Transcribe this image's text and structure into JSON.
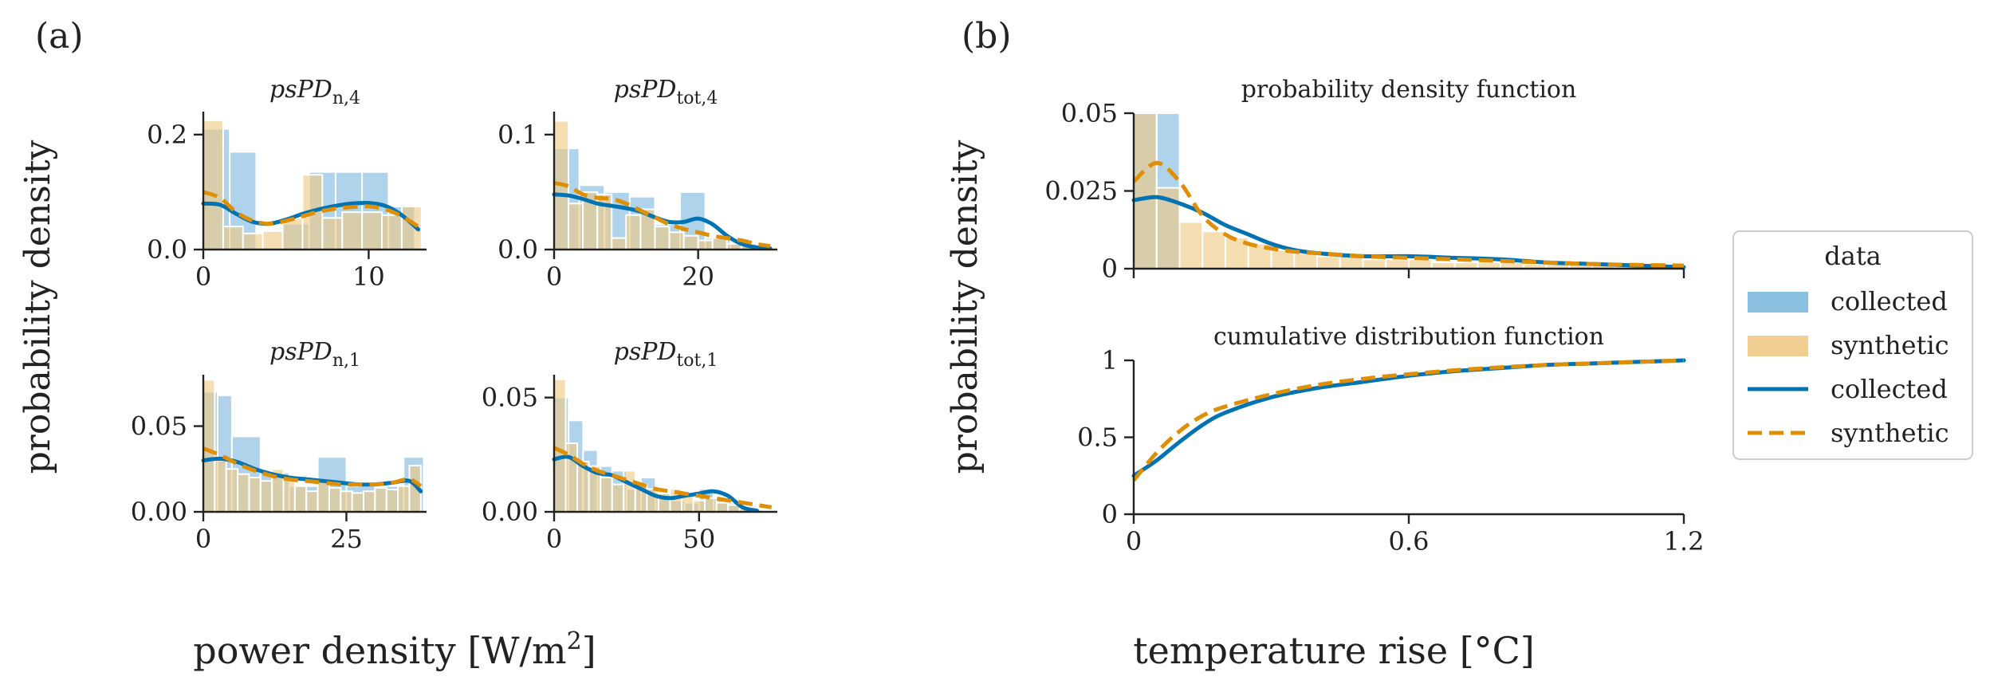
{
  "panel_labels": {
    "a": "(a)",
    "b": "(b)"
  },
  "axis_labels": {
    "a_y": "probability density",
    "a_x_prefix": "power density [W/m",
    "a_x_sup": "2",
    "a_x_suffix": "]",
    "b_y": "probability density",
    "b_x": "temperature rise [°C]"
  },
  "legend": {
    "title": "data",
    "entries": [
      {
        "label": "collected",
        "kind": "hist",
        "color": "#0173b2"
      },
      {
        "label": "synthetic",
        "kind": "hist",
        "color": "#de8f05"
      },
      {
        "label": "collected",
        "kind": "line",
        "color": "#0173b2"
      },
      {
        "label": "synthetic",
        "kind": "dash",
        "color": "#de8f05"
      }
    ]
  },
  "colors": {
    "collected": "#0173b2",
    "synthetic": "#de8f05",
    "collected_fill": "#7db8dd",
    "synthetic_fill": "#f0c985"
  },
  "chart_data": [
    {
      "type": "bar",
      "title_base": "psPD",
      "title_sub": "n,4",
      "xlim": [
        0,
        13.5
      ],
      "ylim": [
        0,
        0.24
      ],
      "xticks": [
        0,
        10
      ],
      "xtick_labels": [
        "0",
        "10"
      ],
      "yticks": [
        0,
        0.2
      ],
      "ytick_labels": [
        "0.0",
        "0.2"
      ],
      "hist_collected": {
        "edges": [
          0,
          1.6,
          3.2,
          4.8,
          6.4,
          8.0,
          9.6,
          11.2,
          12.8
        ],
        "density": [
          0.21,
          0.17,
          0.0,
          0.045,
          0.135,
          0.135,
          0.135,
          0.075
        ]
      },
      "hist_synthetic": {
        "edges": [
          0,
          1.2,
          2.4,
          3.6,
          4.8,
          6.0,
          7.2,
          8.4,
          9.6,
          10.8,
          12.0,
          13.2
        ],
        "density": [
          0.225,
          0.04,
          0.028,
          0.032,
          0.055,
          0.13,
          0.055,
          0.065,
          0.065,
          0.06,
          0.075
        ]
      },
      "kde_collected": {
        "x": [
          0,
          1,
          2,
          3,
          4,
          5,
          6,
          7,
          8,
          9,
          10,
          11,
          12,
          13
        ],
        "y": [
          0.08,
          0.078,
          0.062,
          0.048,
          0.045,
          0.052,
          0.062,
          0.07,
          0.076,
          0.08,
          0.081,
          0.076,
          0.06,
          0.035
        ]
      },
      "kde_synthetic": {
        "x": [
          0,
          1,
          2,
          3,
          4,
          5,
          6,
          7,
          8,
          9,
          10,
          11,
          12,
          13
        ],
        "y": [
          0.1,
          0.09,
          0.065,
          0.05,
          0.045,
          0.05,
          0.058,
          0.066,
          0.071,
          0.074,
          0.075,
          0.07,
          0.058,
          0.04
        ]
      }
    },
    {
      "type": "bar",
      "title_base": "psPD",
      "title_sub": "tot,4",
      "xlim": [
        0,
        31
      ],
      "ylim": [
        0,
        0.12
      ],
      "xticks": [
        0,
        20
      ],
      "xtick_labels": [
        "0",
        "20"
      ],
      "yticks": [
        0,
        0.1
      ],
      "ytick_labels": [
        "0.0",
        "0.1"
      ],
      "hist_collected": {
        "edges": [
          0,
          3.5,
          7,
          10.5,
          14,
          17.5,
          21,
          24.5,
          28
        ],
        "density": [
          0.088,
          0.056,
          0.05,
          0.046,
          0.022,
          0.05,
          0.01,
          0.005
        ]
      },
      "hist_synthetic": {
        "edges": [
          0,
          2,
          4,
          6,
          8,
          10,
          12,
          14,
          16,
          18,
          20,
          22,
          24,
          26,
          28
        ],
        "density": [
          0.112,
          0.04,
          0.05,
          0.048,
          0.01,
          0.03,
          0.035,
          0.02,
          0.015,
          0.012,
          0.008,
          0.01,
          0.005,
          0.003
        ]
      },
      "kde_collected": {
        "x": [
          0,
          2,
          4,
          6,
          8,
          10,
          12,
          14,
          16,
          18,
          20,
          22,
          24,
          26,
          28,
          30
        ],
        "y": [
          0.048,
          0.047,
          0.044,
          0.04,
          0.038,
          0.036,
          0.033,
          0.028,
          0.024,
          0.024,
          0.027,
          0.022,
          0.012,
          0.005,
          0.002,
          0.001
        ]
      },
      "kde_synthetic": {
        "x": [
          0,
          2,
          4,
          6,
          8,
          10,
          12,
          14,
          16,
          18,
          20,
          22,
          24,
          26,
          28,
          30
        ],
        "y": [
          0.058,
          0.055,
          0.048,
          0.045,
          0.044,
          0.04,
          0.034,
          0.028,
          0.022,
          0.018,
          0.015,
          0.012,
          0.01,
          0.008,
          0.005,
          0.003
        ]
      }
    },
    {
      "type": "bar",
      "title_base": "psPD",
      "title_sub": "n,1",
      "xlim": [
        0,
        39
      ],
      "ylim": [
        0,
        0.08
      ],
      "xticks": [
        0,
        25
      ],
      "xtick_labels": [
        "0",
        "25"
      ],
      "yticks": [
        0,
        0.05
      ],
      "ytick_labels": [
        "0.00",
        "0.05"
      ],
      "hist_collected": {
        "edges": [
          0,
          2.5,
          5,
          10,
          15,
          20,
          25,
          30,
          35,
          38.5
        ],
        "density": [
          0.07,
          0.068,
          0.044,
          0.023,
          0.015,
          0.032,
          0.015,
          0.015,
          0.032
        ]
      },
      "hist_synthetic": {
        "edges": [
          0,
          2,
          4,
          6,
          8,
          10,
          12,
          14,
          16,
          18,
          20,
          22,
          24,
          26,
          28,
          30,
          32,
          34,
          36,
          38
        ],
        "density": [
          0.077,
          0.03,
          0.025,
          0.022,
          0.02,
          0.018,
          0.025,
          0.02,
          0.015,
          0.012,
          0.018,
          0.014,
          0.012,
          0.011,
          0.012,
          0.014,
          0.013,
          0.015,
          0.027
        ]
      },
      "kde_collected": {
        "x": [
          0,
          3,
          6,
          9,
          12,
          15,
          18,
          21,
          24,
          27,
          30,
          33,
          36,
          38
        ],
        "y": [
          0.03,
          0.031,
          0.029,
          0.025,
          0.022,
          0.02,
          0.019,
          0.018,
          0.017,
          0.016,
          0.016,
          0.017,
          0.018,
          0.012
        ]
      },
      "kde_synthetic": {
        "x": [
          0,
          3,
          6,
          9,
          12,
          15,
          18,
          21,
          24,
          27,
          30,
          33,
          36,
          38
        ],
        "y": [
          0.037,
          0.033,
          0.028,
          0.024,
          0.021,
          0.019,
          0.018,
          0.017,
          0.016,
          0.016,
          0.016,
          0.017,
          0.019,
          0.015
        ]
      }
    },
    {
      "type": "bar",
      "title_base": "psPD",
      "title_sub": "tot,1",
      "xlim": [
        0,
        77
      ],
      "ylim": [
        0,
        0.06
      ],
      "xticks": [
        0,
        50
      ],
      "xtick_labels": [
        "0",
        "50"
      ],
      "yticks": [
        0,
        0.05
      ],
      "ytick_labels": [
        "0.00",
        "0.05"
      ],
      "hist_collected": {
        "edges": [
          0,
          5,
          10,
          15,
          20,
          25,
          30,
          35,
          40,
          45,
          50,
          55,
          60,
          65,
          70
        ],
        "density": [
          0.05,
          0.04,
          0.027,
          0.02,
          0.018,
          0.01,
          0.015,
          0.008,
          0.005,
          0.004,
          0.01,
          0.006,
          0.004,
          0.002
        ]
      },
      "hist_synthetic": {
        "edges": [
          0,
          4,
          8,
          12,
          16,
          20,
          24,
          28,
          32,
          36,
          40,
          44,
          48,
          52,
          56,
          60,
          64,
          68,
          72
        ],
        "density": [
          0.058,
          0.03,
          0.022,
          0.02,
          0.015,
          0.012,
          0.018,
          0.012,
          0.01,
          0.008,
          0.01,
          0.007,
          0.005,
          0.006,
          0.004,
          0.003,
          0.002,
          0.001
        ]
      },
      "kde_collected": {
        "x": [
          0,
          5,
          10,
          15,
          20,
          25,
          30,
          35,
          40,
          45,
          50,
          55,
          60,
          65,
          70
        ],
        "y": [
          0.023,
          0.024,
          0.02,
          0.017,
          0.016,
          0.013,
          0.01,
          0.007,
          0.006,
          0.007,
          0.008,
          0.009,
          0.007,
          0.002,
          0.0005
        ]
      },
      "kde_synthetic": {
        "x": [
          0,
          5,
          10,
          15,
          20,
          25,
          30,
          35,
          40,
          45,
          50,
          55,
          60,
          65,
          70,
          75
        ],
        "y": [
          0.028,
          0.025,
          0.021,
          0.018,
          0.016,
          0.014,
          0.012,
          0.01,
          0.009,
          0.008,
          0.007,
          0.006,
          0.005,
          0.004,
          0.003,
          0.002
        ]
      }
    },
    {
      "type": "bar",
      "title": "probability density function",
      "xlim": [
        0,
        1.2
      ],
      "ylim": [
        0,
        0.05
      ],
      "xticks": [
        0,
        0.6,
        1.2
      ],
      "xtick_labels": [
        "",
        "",
        ""
      ],
      "yticks": [
        0,
        0.025,
        0.05
      ],
      "ytick_labels": [
        "0",
        "0.025",
        "0.05"
      ],
      "hist_collected": {
        "edges": [
          0,
          0.05,
          0.1
        ],
        "density": [
          0.05,
          0.05
        ]
      },
      "hist_synthetic": {
        "edges": [
          0,
          0.05,
          0.1,
          0.15,
          0.2,
          0.25,
          0.3,
          0.35,
          0.4,
          0.45,
          0.5,
          0.55,
          0.6,
          0.65,
          0.7,
          0.75,
          0.8,
          0.85,
          0.9,
          0.95,
          1.0,
          1.05,
          1.1,
          1.15,
          1.2
        ],
        "density": [
          0.05,
          0.026,
          0.015,
          0.012,
          0.01,
          0.008,
          0.006,
          0.005,
          0.004,
          0.004,
          0.003,
          0.003,
          0.003,
          0.002,
          0.002,
          0.002,
          0.002,
          0.0015,
          0.0015,
          0.0012,
          0.001,
          0.001,
          0.001,
          0.0008
        ]
      },
      "kde_collected": {
        "x": [
          0,
          0.05,
          0.1,
          0.15,
          0.2,
          0.25,
          0.3,
          0.35,
          0.4,
          0.5,
          0.6,
          0.7,
          0.8,
          0.9,
          1.0,
          1.1,
          1.2
        ],
        "y": [
          0.022,
          0.023,
          0.021,
          0.018,
          0.014,
          0.011,
          0.008,
          0.006,
          0.005,
          0.004,
          0.004,
          0.0035,
          0.003,
          0.002,
          0.0015,
          0.001,
          0.0005
        ]
      },
      "kde_synthetic": {
        "x": [
          0,
          0.05,
          0.1,
          0.15,
          0.2,
          0.25,
          0.3,
          0.35,
          0.4,
          0.5,
          0.6,
          0.7,
          0.8,
          0.9,
          1.0,
          1.1,
          1.2
        ],
        "y": [
          0.028,
          0.034,
          0.028,
          0.017,
          0.011,
          0.008,
          0.0065,
          0.0055,
          0.005,
          0.004,
          0.0035,
          0.003,
          0.0025,
          0.002,
          0.0015,
          0.0012,
          0.001
        ]
      }
    },
    {
      "type": "line",
      "title": "cumulative distribution function",
      "xlim": [
        0,
        1.2
      ],
      "ylim": [
        0,
        1.0
      ],
      "xticks": [
        0,
        0.6,
        1.2
      ],
      "xtick_labels": [
        "0",
        "0.6",
        "1.2"
      ],
      "yticks": [
        0,
        0.5,
        1
      ],
      "ytick_labels": [
        "0",
        "0.5",
        "1"
      ],
      "series": [
        {
          "name": "collected",
          "x": [
            0,
            0.05,
            0.1,
            0.15,
            0.2,
            0.3,
            0.4,
            0.5,
            0.6,
            0.7,
            0.8,
            0.9,
            1.0,
            1.1,
            1.2
          ],
          "y": [
            0.25,
            0.35,
            0.47,
            0.58,
            0.66,
            0.76,
            0.82,
            0.86,
            0.9,
            0.93,
            0.95,
            0.97,
            0.98,
            0.99,
            1.0
          ]
        },
        {
          "name": "synthetic",
          "x": [
            0,
            0.05,
            0.1,
            0.15,
            0.2,
            0.3,
            0.4,
            0.5,
            0.6,
            0.7,
            0.8,
            0.9,
            1.0,
            1.1,
            1.2
          ],
          "y": [
            0.22,
            0.4,
            0.54,
            0.64,
            0.7,
            0.78,
            0.84,
            0.88,
            0.91,
            0.935,
            0.955,
            0.97,
            0.98,
            0.99,
            1.0
          ]
        }
      ]
    }
  ]
}
